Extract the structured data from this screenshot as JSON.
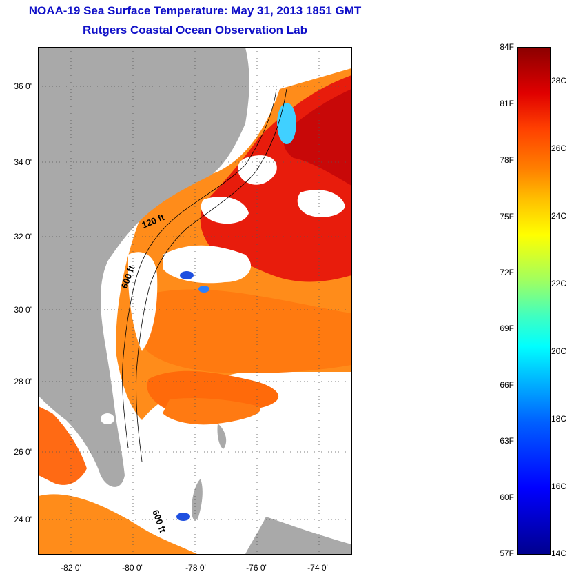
{
  "title_line1": "NOAA-19 Sea Surface Temperature:  May 31, 2013 1851 GMT",
  "title_line2": "Rutgers Coastal Ocean Observation Lab",
  "map": {
    "lat_labels": [
      "36 0'",
      "34 0'",
      "32 0'",
      "30 0'",
      "28 0'",
      "26 0'",
      "24 0'"
    ],
    "lon_labels": [
      "-82 0'",
      "-80 0'",
      "-78 0'",
      "-76 0'",
      "-74 0'"
    ],
    "contours": [
      "120 ft",
      "600 ft",
      "600 ft"
    ],
    "colors": {
      "land": "#a9a9a9",
      "cloud": "#ffffff",
      "warm": "#ff8c1a",
      "hot": "#e81c0c",
      "cool": "#1e4fe0"
    }
  },
  "colorbar": {
    "fahrenheit": [
      "84F",
      "81F",
      "78F",
      "75F",
      "72F",
      "69F",
      "66F",
      "63F",
      "60F",
      "57F"
    ],
    "celsius": [
      "28C",
      "26C",
      "24C",
      "22C",
      "20C",
      "18C",
      "16C",
      "14C"
    ]
  }
}
